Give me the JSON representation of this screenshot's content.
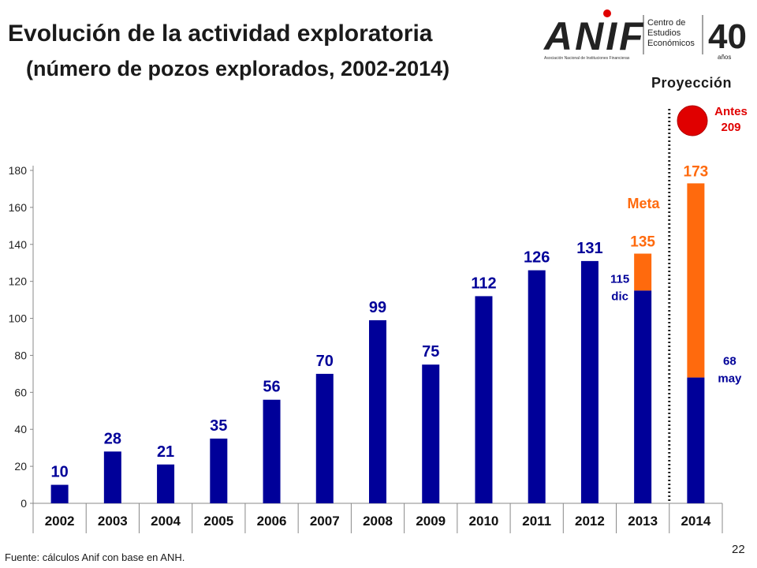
{
  "title": "Evolución de la actividad exploratoria",
  "subtitle": "(número de pozos explorados, 2002-2014)",
  "logo": {
    "wordmark": "ANIF",
    "tagline": "Asociación Nacional de Instituciones Financieras",
    "unit_line1": "Centro de",
    "unit_line2": "Estudios",
    "unit_line3": "Económicos",
    "anniversary": "40",
    "anniversary_sub": "años"
  },
  "projection_label": "Proyección",
  "source": "Fuente: cálculos Anif con base en ANH.",
  "page_number": "22",
  "colors": {
    "bar": "#000099",
    "goal": "#ff6a0d",
    "goal_text": "#ff6a0d",
    "highlight": "#e00000",
    "label": "#000099"
  },
  "chart_data": {
    "type": "bar",
    "categories": [
      "2002",
      "2003",
      "2004",
      "2005",
      "2006",
      "2007",
      "2008",
      "2009",
      "2010",
      "2011",
      "2012",
      "2013",
      "2014"
    ],
    "values": [
      10,
      28,
      21,
      35,
      56,
      70,
      99,
      75,
      112,
      126,
      131,
      115,
      68
    ],
    "value_labels": [
      "10",
      "28",
      "21",
      "35",
      "56",
      "70",
      "99",
      "75",
      "112",
      "126",
      "131",
      "115\ndic",
      "68\nmay"
    ],
    "goal_values": [
      null,
      null,
      null,
      null,
      null,
      null,
      null,
      null,
      null,
      null,
      null,
      135,
      173
    ],
    "goal_labels": [
      null,
      null,
      null,
      null,
      null,
      null,
      null,
      null,
      null,
      null,
      null,
      "135",
      "173"
    ],
    "goal_series_label": "Meta",
    "previous_goal_label": "Antes\n209",
    "previous_goal_category": "2014",
    "projection_divider_after": "2013",
    "ylim": [
      0,
      180
    ],
    "yticks": [
      0,
      20,
      40,
      60,
      80,
      100,
      120,
      140,
      160,
      180
    ],
    "xlabel": "",
    "ylabel": "",
    "grid": false,
    "legend": "none"
  }
}
